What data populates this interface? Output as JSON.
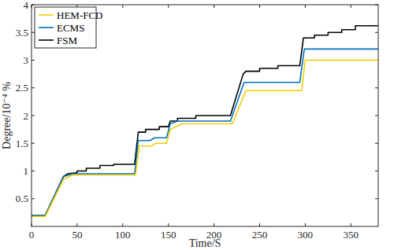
{
  "chart_data": {
    "type": "line",
    "x_label": "Time/S",
    "y_label": "Degree/10⁻⁴ %",
    "xlim": [
      0,
      380
    ],
    "ylim": [
      0,
      4
    ],
    "xticks": [
      0,
      50,
      100,
      150,
      200,
      250,
      300,
      350
    ],
    "yticks": [
      0.5,
      1,
      1.5,
      2,
      2.5,
      3,
      3.5,
      4
    ],
    "grid": false,
    "legend": "top-left",
    "series": [
      {
        "name": "HEM-FCD",
        "color": "#f2cc00",
        "x": [
          0,
          15,
          35,
          45,
          114,
          118,
          132,
          136,
          148,
          152,
          165,
          220,
          235,
          296,
          300,
          380
        ],
        "values": [
          0.18,
          0.18,
          0.85,
          0.93,
          0.93,
          1.45,
          1.45,
          1.5,
          1.5,
          1.75,
          1.85,
          1.85,
          2.45,
          2.45,
          3.0,
          3.0
        ]
      },
      {
        "name": "ECMS",
        "color": "#0072bd",
        "x": [
          0,
          15,
          35,
          45,
          113,
          117,
          130,
          135,
          148,
          152,
          160,
          218,
          233,
          294,
          299,
          380
        ],
        "values": [
          0.2,
          0.2,
          0.9,
          0.95,
          0.95,
          1.55,
          1.55,
          1.6,
          1.6,
          1.85,
          1.9,
          1.9,
          2.6,
          2.6,
          3.2,
          3.2
        ]
      },
      {
        "name": "FSM",
        "color": "#000000",
        "x": [
          0,
          15,
          35,
          40,
          50,
          50,
          60,
          60,
          75,
          75,
          90,
          90,
          113,
          117,
          125,
          125,
          140,
          140,
          150,
          152,
          160,
          160,
          180,
          180,
          218,
          232,
          235,
          250,
          250,
          270,
          270,
          294,
          298,
          310,
          310,
          325,
          325,
          340,
          340,
          355,
          355,
          380
        ],
        "values": [
          0.2,
          0.2,
          0.9,
          0.95,
          0.97,
          1.0,
          1.0,
          1.05,
          1.05,
          1.1,
          1.1,
          1.12,
          1.12,
          1.7,
          1.7,
          1.75,
          1.75,
          1.8,
          1.8,
          1.9,
          1.9,
          1.95,
          1.95,
          2.0,
          2.0,
          2.75,
          2.8,
          2.8,
          2.85,
          2.85,
          2.9,
          2.9,
          3.4,
          3.4,
          3.45,
          3.45,
          3.5,
          3.5,
          3.55,
          3.55,
          3.62,
          3.62
        ]
      }
    ]
  }
}
